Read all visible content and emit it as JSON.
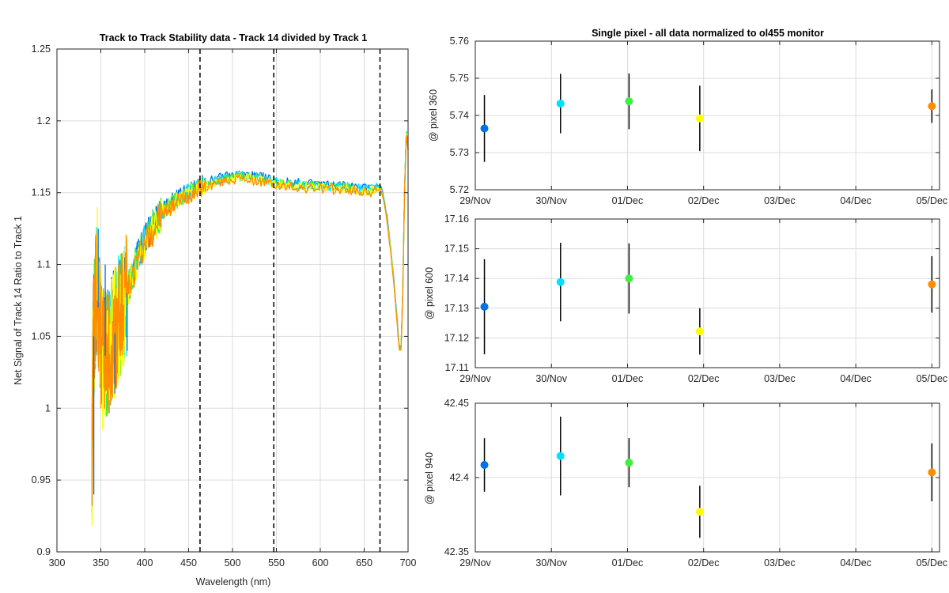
{
  "chart_data": [
    {
      "type": "line",
      "title": "Track to Track Stability data - Track 14 divided by Track 1",
      "xlabel": "Wavelength (nm)",
      "ylabel": "Net Signal of Track 14 Ratio to Track 1",
      "xlim": [
        300,
        700
      ],
      "ylim": [
        0.9,
        1.25
      ],
      "xticks": [
        300,
        350,
        400,
        450,
        500,
        550,
        600,
        650,
        700
      ],
      "yticks": [
        0.9,
        0.95,
        1,
        1.05,
        1.1,
        1.15,
        1.2,
        1.25
      ],
      "grid": true,
      "vertical_dashed_lines": [
        463,
        547,
        668
      ],
      "series_colors": [
        "#0072e6",
        "#00e0ff",
        "#40f040",
        "#ffff00",
        "#ff8c00"
      ],
      "curve": {
        "x": [
          340,
          341,
          343,
          345,
          347,
          350,
          353,
          356,
          360,
          365,
          370,
          375,
          380,
          390,
          400,
          410,
          420,
          430,
          440,
          450,
          460,
          470,
          480,
          490,
          500,
          510,
          520,
          530,
          540,
          550,
          560,
          570,
          580,
          590,
          600,
          610,
          620,
          630,
          640,
          650,
          660,
          668,
          672,
          676,
          680,
          684,
          688,
          690,
          692,
          694,
          696,
          698,
          700
        ],
        "y": [
          0.96,
          1.04,
          1.06,
          1.08,
          1.07,
          1.05,
          1.04,
          1.035,
          1.04,
          1.05,
          1.06,
          1.07,
          1.08,
          1.1,
          1.115,
          1.125,
          1.135,
          1.14,
          1.145,
          1.148,
          1.152,
          1.154,
          1.156,
          1.158,
          1.159,
          1.16,
          1.159,
          1.158,
          1.157,
          1.155,
          1.154,
          1.154,
          1.153,
          1.153,
          1.153,
          1.152,
          1.152,
          1.152,
          1.151,
          1.15,
          1.15,
          1.153,
          1.145,
          1.13,
          1.11,
          1.085,
          1.055,
          1.04,
          1.04,
          1.08,
          1.15,
          1.19,
          1.18
        ]
      },
      "noise_spikes": [
        {
          "x": 342,
          "y": 0.94
        },
        {
          "x": 344,
          "y": 1.12
        },
        {
          "x": 346,
          "y": 1.14
        },
        {
          "x": 347,
          "y": 1.125
        },
        {
          "x": 350,
          "y": 1.0
        },
        {
          "x": 352,
          "y": 0.985
        },
        {
          "x": 355,
          "y": 1.1
        },
        {
          "x": 358,
          "y": 1.0
        },
        {
          "x": 362,
          "y": 1.09
        },
        {
          "x": 366,
          "y": 1.01
        },
        {
          "x": 370,
          "y": 1.1
        },
        {
          "x": 376,
          "y": 1.11
        },
        {
          "x": 380,
          "y": 1.04
        }
      ]
    },
    {
      "type": "scatter",
      "title": "Single pixel - all data normalized to ol455 monitor",
      "ylabel": "@ pixel 360",
      "xtick_labels": [
        "29/Nov",
        "30/Nov",
        "01/Dec",
        "02/Dec",
        "03/Dec",
        "04/Dec",
        "05/Dec"
      ],
      "xlim": [
        0,
        6.1
      ],
      "ylim": [
        5.72,
        5.76
      ],
      "yticks": [
        5.72,
        5.73,
        5.74,
        5.75,
        5.76
      ],
      "grid": true,
      "points": [
        {
          "x": 0.12,
          "y": 5.7365,
          "err": 0.009,
          "color": "#0072e6"
        },
        {
          "x": 1.12,
          "y": 5.7432,
          "err": 0.008,
          "color": "#00e0ff"
        },
        {
          "x": 2.02,
          "y": 5.7438,
          "err": 0.0075,
          "color": "#40f040"
        },
        {
          "x": 2.95,
          "y": 5.7392,
          "err": 0.0088,
          "color": "#ffff00"
        },
        {
          "x": 6.0,
          "y": 5.7425,
          "err": 0.0045,
          "color": "#ff8c00"
        }
      ]
    },
    {
      "type": "scatter",
      "ylabel": "@ pixel 600",
      "xtick_labels": [
        "29/Nov",
        "30/Nov",
        "01/Dec",
        "02/Dec",
        "03/Dec",
        "04/Dec",
        "05/Dec"
      ],
      "xlim": [
        0,
        6.1
      ],
      "ylim": [
        17.11,
        17.16
      ],
      "yticks": [
        17.11,
        17.12,
        17.13,
        17.14,
        17.15,
        17.16
      ],
      "grid": true,
      "points": [
        {
          "x": 0.12,
          "y": 17.1305,
          "err": 0.016,
          "color": "#0072e6"
        },
        {
          "x": 1.12,
          "y": 17.1388,
          "err": 0.0132,
          "color": "#00e0ff"
        },
        {
          "x": 2.02,
          "y": 17.14,
          "err": 0.0118,
          "color": "#40f040"
        },
        {
          "x": 2.95,
          "y": 17.1222,
          "err": 0.0078,
          "color": "#ffff00"
        },
        {
          "x": 6.0,
          "y": 17.138,
          "err": 0.0095,
          "color": "#ff8c00"
        }
      ]
    },
    {
      "type": "scatter",
      "ylabel": "@ pixel 940",
      "xtick_labels": [
        "29/Nov",
        "30/Nov",
        "01/Dec",
        "02/Dec",
        "03/Dec",
        "04/Dec",
        "05/Dec"
      ],
      "xlim": [
        0,
        6.1
      ],
      "ylim": [
        42.35,
        42.45
      ],
      "yticks": [
        42.35,
        42.4,
        42.45
      ],
      "grid": true,
      "points": [
        {
          "x": 0.12,
          "y": 42.4085,
          "err": 0.018,
          "color": "#0072e6"
        },
        {
          "x": 1.12,
          "y": 42.4145,
          "err": 0.0265,
          "color": "#00e0ff"
        },
        {
          "x": 2.02,
          "y": 42.41,
          "err": 0.0165,
          "color": "#40f040"
        },
        {
          "x": 2.95,
          "y": 42.377,
          "err": 0.0175,
          "color": "#ffff00"
        },
        {
          "x": 6.0,
          "y": 42.4035,
          "err": 0.0195,
          "color": "#ff8c00"
        }
      ]
    }
  ]
}
